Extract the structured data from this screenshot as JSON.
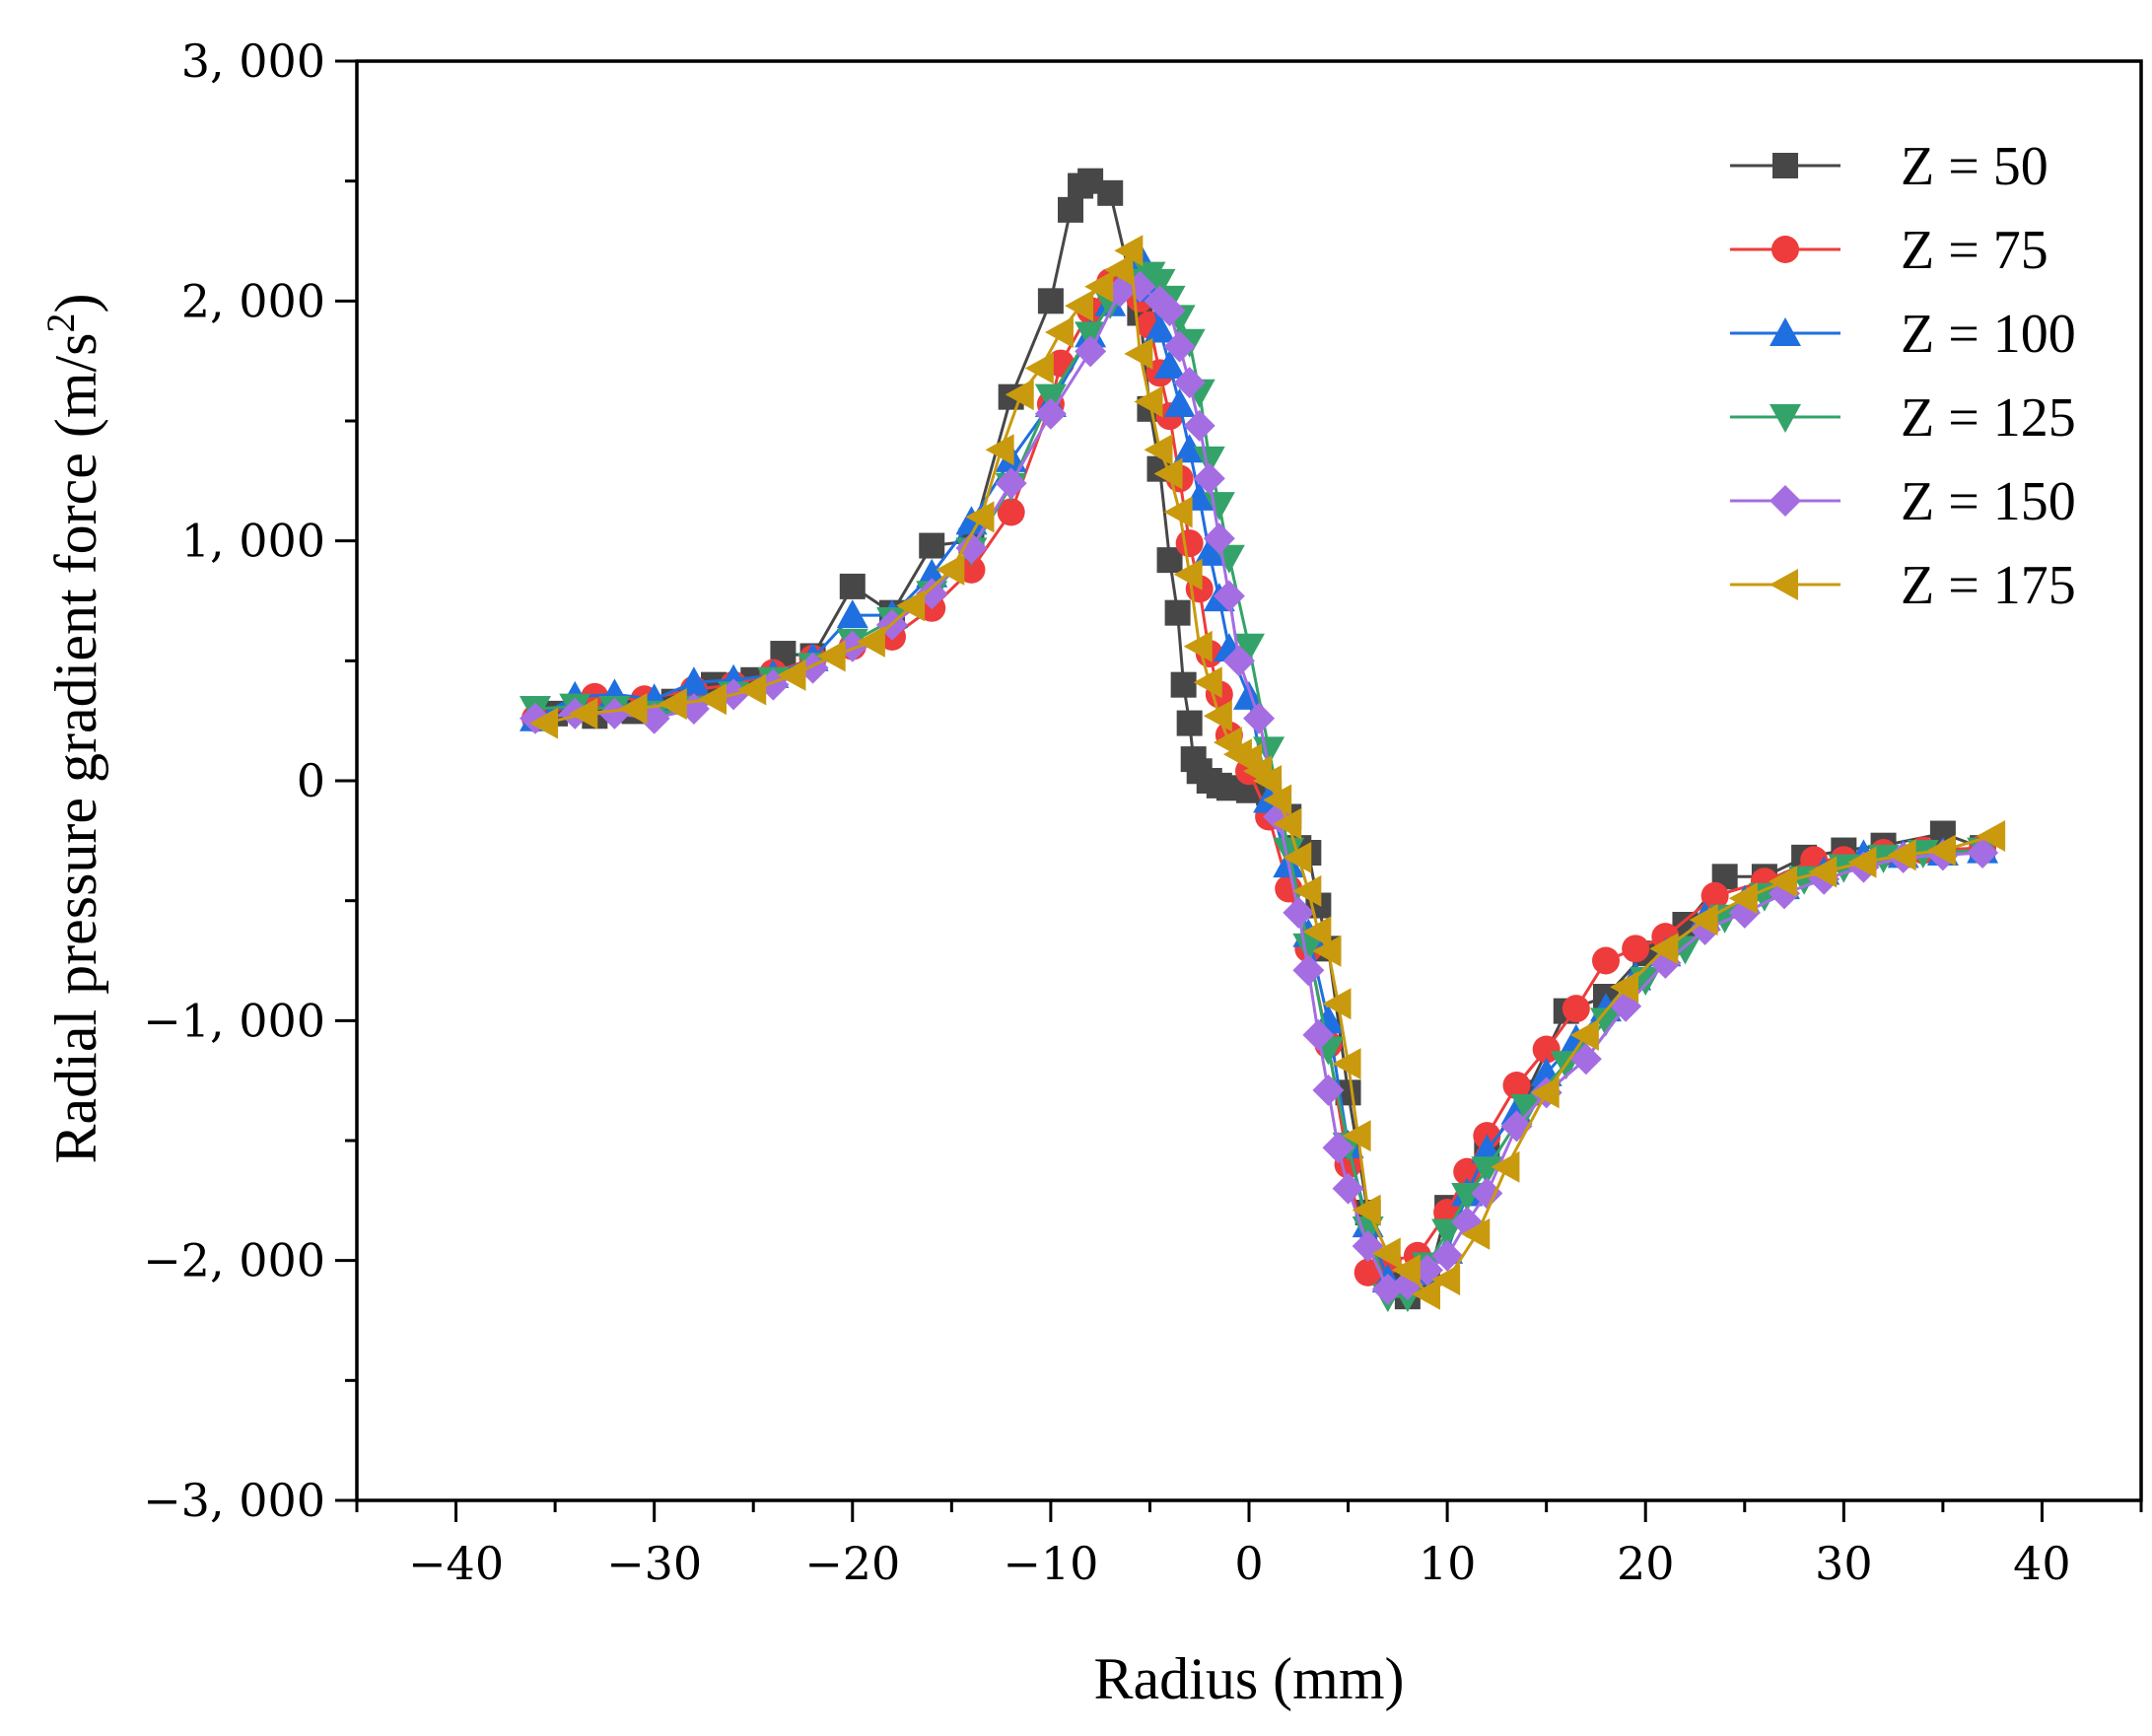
{
  "chart_data": {
    "type": "line",
    "title": "",
    "xlabel": "Radius (mm)",
    "ylabel": "Radial pressure gradient force (m/s2)",
    "ylabel_parts": {
      "main": "Radial pressure gradient force (m/s",
      "sup": "2",
      "end": ")"
    },
    "xlim": [
      -45,
      45
    ],
    "ylim": [
      -3000,
      3000
    ],
    "x_ticks": [
      -40,
      -30,
      -20,
      -10,
      0,
      10,
      20,
      30,
      40
    ],
    "x_tick_labels": [
      "−40",
      "−30",
      "−20",
      "−10",
      "0",
      "10",
      "20",
      "30",
      "40"
    ],
    "y_ticks": [
      -3000,
      -2000,
      -1000,
      0,
      1000,
      2000,
      3000
    ],
    "y_tick_labels": [
      "−3, 000",
      "−2, 000",
      "−1, 000",
      "0",
      "1, 000",
      "2, 000",
      "3, 000"
    ],
    "grid": false,
    "legend_position": "top-right",
    "series": [
      {
        "name": "Z = 50",
        "color": "#474747",
        "marker": "square",
        "x": [
          -35,
          -33,
          -31,
          -29,
          -27,
          -25,
          -23.5,
          -22,
          -20,
          -18,
          -16,
          -14,
          -12,
          -10,
          -9,
          -8.5,
          -8,
          -7,
          -6,
          -5.5,
          -5,
          -4.5,
          -4,
          -3.6,
          -3.3,
          -3,
          -2.8,
          -2.5,
          -2,
          -1.5,
          -1,
          0,
          1,
          2,
          2.5,
          3,
          3.5,
          4,
          5,
          6,
          7,
          8,
          9,
          10,
          12,
          14,
          16,
          18,
          20,
          22,
          24,
          26,
          28,
          30,
          32,
          35,
          37
        ],
        "values": [
          280,
          270,
          290,
          330,
          400,
          420,
          530,
          520,
          810,
          700,
          980,
          1000,
          1600,
          2000,
          2380,
          2480,
          2500,
          2450,
          2100,
          1950,
          1550,
          1300,
          920,
          700,
          400,
          240,
          90,
          40,
          0,
          -20,
          -30,
          -40,
          -50,
          -150,
          -280,
          -300,
          -520,
          -700,
          -1300,
          -1800,
          -2080,
          -2150,
          -2100,
          -1780,
          -1550,
          -1300,
          -960,
          -900,
          -720,
          -600,
          -400,
          -400,
          -320,
          -290,
          -270,
          -220,
          -280
        ]
      },
      {
        "name": "Z = 75",
        "color": "#ee3b3b",
        "marker": "circle",
        "x": [
          -36,
          -33,
          -30.5,
          -28,
          -26,
          -24,
          -22,
          -20,
          -18,
          -16,
          -14,
          -12,
          -10,
          -9.5,
          -8,
          -7,
          -6,
          -5.5,
          -5,
          -4.5,
          -4,
          -3.5,
          -3,
          -2.5,
          -2,
          -1.5,
          -1,
          0,
          1,
          2,
          3,
          4,
          5,
          6,
          7,
          8.5,
          10,
          11,
          12,
          13.5,
          15,
          16.5,
          18,
          19.5,
          21,
          23.5,
          26,
          28.5,
          30,
          32,
          34,
          37
        ],
        "values": [
          260,
          350,
          340,
          380,
          400,
          450,
          510,
          560,
          600,
          720,
          880,
          1120,
          1570,
          1740,
          1960,
          2080,
          2080,
          2010,
          1900,
          1700,
          1520,
          1260,
          990,
          800,
          530,
          360,
          190,
          40,
          -150,
          -450,
          -700,
          -1100,
          -1600,
          -2050,
          -2000,
          -1980,
          -1800,
          -1630,
          -1480,
          -1270,
          -1120,
          -950,
          -750,
          -700,
          -650,
          -480,
          -420,
          -330,
          -330,
          -300,
          -290,
          -280
        ]
      },
      {
        "name": "Z = 100",
        "color": "#1f6fe0",
        "marker": "triangle-up",
        "x": [
          -36,
          -34,
          -32,
          -30,
          -28,
          -26,
          -24,
          -22,
          -20,
          -18,
          -16,
          -14,
          -12,
          -10,
          -8,
          -7,
          -6,
          -5.5,
          -5,
          -4.5,
          -4,
          -3.5,
          -3,
          -2.5,
          -2,
          -1.5,
          -1,
          0,
          1,
          2,
          3,
          4,
          5,
          6,
          7,
          8,
          9,
          10,
          11,
          12,
          13.5,
          15,
          16.5,
          18,
          19.5,
          21,
          23,
          25,
          27,
          29,
          31,
          33,
          35,
          37
        ],
        "values": [
          260,
          350,
          360,
          340,
          410,
          420,
          440,
          510,
          690,
          690,
          860,
          1080,
          1340,
          1570,
          1860,
          1990,
          2130,
          2180,
          2050,
          1880,
          1730,
          1570,
          1380,
          1180,
          950,
          760,
          550,
          350,
          -80,
          -350,
          -640,
          -1000,
          -1520,
          -1850,
          -2080,
          -2100,
          -2050,
          -1960,
          -1720,
          -1540,
          -1380,
          -1220,
          -1080,
          -950,
          -820,
          -720,
          -570,
          -500,
          -440,
          -380,
          -310,
          -310,
          -300,
          -290
        ]
      },
      {
        "name": "Z = 125",
        "color": "#34a36a",
        "marker": "triangle-down",
        "x": [
          -36,
          -34,
          -32,
          -30,
          -28,
          -26,
          -24,
          -22,
          -20,
          -18,
          -16,
          -14,
          -12,
          -10,
          -8,
          -7,
          -6,
          -5,
          -4.5,
          -4,
          -3.5,
          -3,
          -2.5,
          -2,
          -1.5,
          -1,
          0,
          1,
          2,
          3,
          4,
          5,
          6,
          7,
          8,
          9,
          10,
          11,
          12,
          14,
          16,
          18,
          20,
          22,
          24,
          26,
          28,
          30,
          32,
          34,
          37
        ],
        "values": [
          300,
          310,
          300,
          280,
          300,
          360,
          420,
          480,
          580,
          670,
          780,
          960,
          1230,
          1600,
          1860,
          1990,
          2080,
          2110,
          2080,
          2010,
          1930,
          1830,
          1620,
          1340,
          1150,
          930,
          560,
          130,
          -290,
          -690,
          -1120,
          -1520,
          -1870,
          -2150,
          -2150,
          -2020,
          -1880,
          -1730,
          -1620,
          -1360,
          -1180,
          -1000,
          -830,
          -700,
          -570,
          -480,
          -410,
          -360,
          -320,
          -300,
          -290
        ]
      },
      {
        "name": "Z = 150",
        "color": "#a56de2",
        "marker": "diamond",
        "x": [
          -36,
          -34,
          -32,
          -30,
          -28,
          -26,
          -24,
          -22,
          -20,
          -18,
          -16,
          -14,
          -12,
          -10,
          -8,
          -6.5,
          -5.5,
          -4.5,
          -4,
          -3.5,
          -3,
          -2.5,
          -2,
          -1.5,
          -1,
          -0.5,
          0.5,
          1.5,
          2.5,
          3,
          3.5,
          4,
          4.5,
          5,
          6,
          7,
          8,
          9,
          10,
          11,
          12,
          13.5,
          15,
          17,
          19,
          21,
          23,
          25,
          27,
          29,
          31,
          33,
          35,
          37
        ],
        "values": [
          260,
          280,
          280,
          260,
          300,
          360,
          400,
          470,
          560,
          650,
          780,
          970,
          1240,
          1530,
          1790,
          2040,
          2060,
          2000,
          1960,
          1810,
          1660,
          1480,
          1260,
          1010,
          770,
          500,
          260,
          -150,
          -550,
          -790,
          -1060,
          -1290,
          -1530,
          -1700,
          -1940,
          -2120,
          -2100,
          -2040,
          -1980,
          -1840,
          -1720,
          -1440,
          -1300,
          -1160,
          -940,
          -760,
          -620,
          -550,
          -470,
          -410,
          -360,
          -320,
          -310,
          -300
        ]
      },
      {
        "name": "Z = 175",
        "color": "#c99a0e",
        "marker": "triangle-left",
        "x": [
          -35.5,
          -33.5,
          -31,
          -29,
          -27,
          -25,
          -23,
          -21,
          -19,
          -17,
          -15,
          -13.5,
          -12.5,
          -11.5,
          -10.5,
          -9.5,
          -8.5,
          -7.5,
          -6.5,
          -6,
          -5.5,
          -5,
          -4.5,
          -4,
          -3.5,
          -3,
          -2.5,
          -2,
          -1.5,
          -1,
          -0.5,
          0,
          0.5,
          1,
          1.5,
          2,
          2.5,
          3,
          3.5,
          4,
          4.5,
          5,
          5.5,
          6,
          7,
          8,
          9,
          10,
          11.5,
          13,
          15,
          17,
          19,
          21,
          23,
          25,
          27,
          29,
          31,
          33,
          35,
          37.5
        ],
        "values": [
          240,
          280,
          300,
          320,
          340,
          380,
          440,
          520,
          580,
          730,
          880,
          1100,
          1380,
          1610,
          1720,
          1870,
          1980,
          2060,
          2130,
          2210,
          1780,
          1580,
          1380,
          1280,
          1120,
          860,
          560,
          410,
          270,
          160,
          110,
          90,
          40,
          0,
          -80,
          -180,
          -320,
          -460,
          -630,
          -710,
          -930,
          -1180,
          -1480,
          -1790,
          -1970,
          -2040,
          -2140,
          -2080,
          -1890,
          -1610,
          -1300,
          -1060,
          -860,
          -700,
          -580,
          -490,
          -420,
          -380,
          -340,
          -310,
          -290,
          -230
        ]
      }
    ]
  }
}
